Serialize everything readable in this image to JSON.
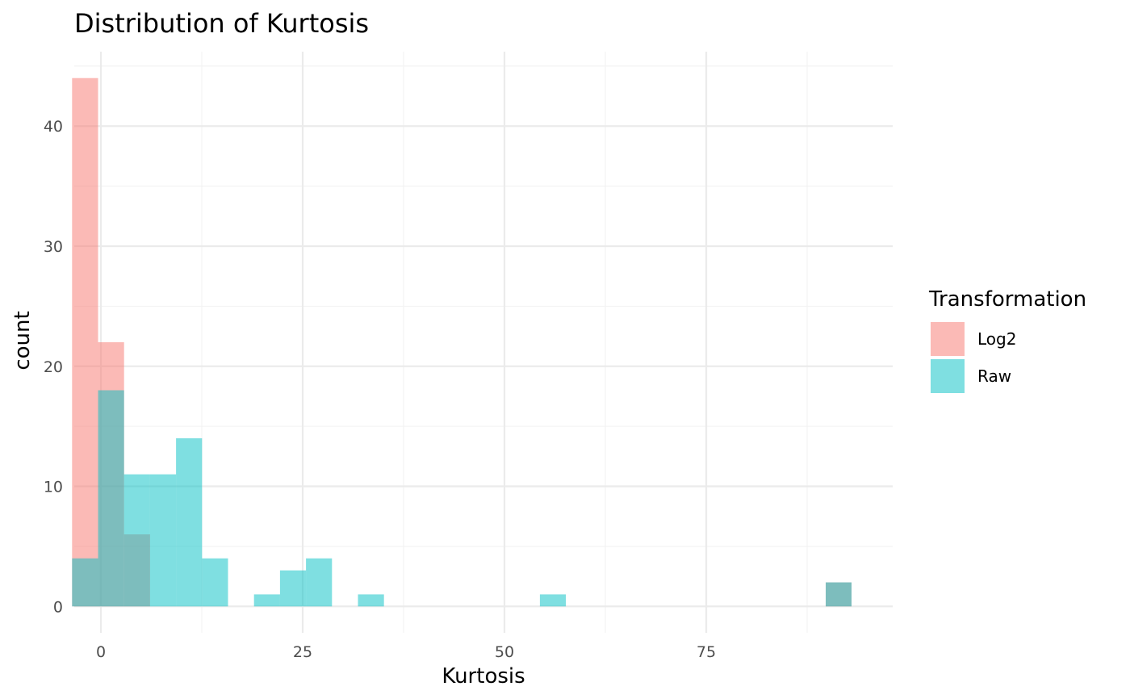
{
  "chart_data": {
    "type": "bar",
    "title": "Distribution of Kurtosis",
    "xlabel": "Kurtosis",
    "ylabel": "count",
    "xlim": [
      -3.3,
      98.1
    ],
    "ylim": [
      -2.2,
      46.2
    ],
    "x_ticks": [
      0,
      25,
      50,
      75
    ],
    "y_ticks": [
      0,
      10,
      20,
      30,
      40
    ],
    "x_tick_labels": [
      "0",
      "25",
      "50",
      "75"
    ],
    "y_tick_labels": [
      "0",
      "10",
      "20",
      "30",
      "40"
    ],
    "grid": true,
    "legend": {
      "title": "Transformation",
      "position": "right"
    },
    "bin_width": 3.22,
    "series": [
      {
        "name": "Log2",
        "color": "#F8766D",
        "bins": [
          {
            "x0": -3.57,
            "x1": -0.35,
            "count": 44
          },
          {
            "x0": -0.35,
            "x1": 2.87,
            "count": 22
          },
          {
            "x0": 2.87,
            "x1": 6.09,
            "count": 6
          },
          {
            "x0": 89.8,
            "x1": 93.0,
            "count": 2
          }
        ]
      },
      {
        "name": "Raw",
        "color": "#00BFC4",
        "bins": [
          {
            "x0": -3.57,
            "x1": -0.35,
            "count": 4
          },
          {
            "x0": -0.35,
            "x1": 2.87,
            "count": 18
          },
          {
            "x0": 2.87,
            "x1": 6.09,
            "count": 11
          },
          {
            "x0": 6.09,
            "x1": 9.31,
            "count": 11
          },
          {
            "x0": 9.31,
            "x1": 12.53,
            "count": 14
          },
          {
            "x0": 12.53,
            "x1": 15.75,
            "count": 4
          },
          {
            "x0": 18.97,
            "x1": 22.19,
            "count": 1
          },
          {
            "x0": 22.19,
            "x1": 25.41,
            "count": 3
          },
          {
            "x0": 25.41,
            "x1": 28.63,
            "count": 4
          },
          {
            "x0": 31.85,
            "x1": 35.07,
            "count": 1
          },
          {
            "x0": 54.39,
            "x1": 57.61,
            "count": 1
          },
          {
            "x0": 89.8,
            "x1": 93.0,
            "count": 2
          }
        ]
      }
    ]
  }
}
